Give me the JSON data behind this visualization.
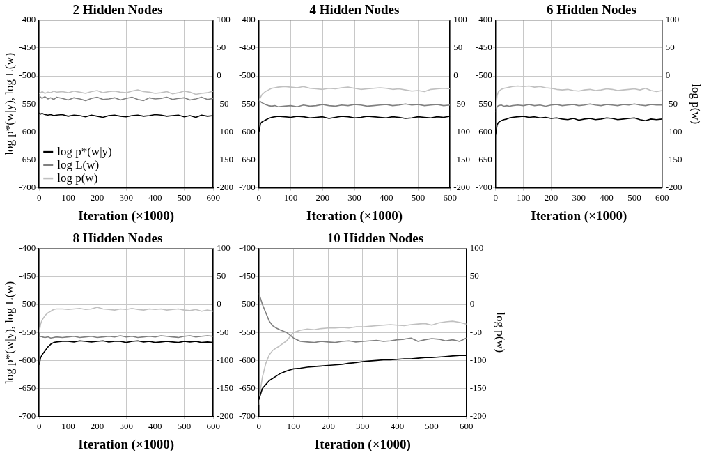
{
  "chart_data": [
    {
      "type": "line",
      "title": "2 Hidden Nodes",
      "xlabel": "Iteration (×1000)",
      "ylabel": "log p*(w|y), log L(w)",
      "xlim": [
        0,
        600
      ],
      "xticks": [
        0,
        100,
        200,
        300,
        400,
        500,
        600
      ],
      "ylim": [
        -700,
        -400
      ],
      "yticks": [
        -700,
        -650,
        -600,
        -550,
        -500,
        -450,
        -400
      ],
      "y2lim": [
        -200,
        100
      ],
      "y2ticks": [
        -200,
        -150,
        -100,
        -50,
        0,
        50,
        100
      ],
      "grid": true,
      "legend": "bottom left",
      "x": [
        0,
        5,
        10,
        20,
        30,
        40,
        50,
        60,
        80,
        100,
        120,
        140,
        160,
        180,
        200,
        220,
        240,
        260,
        280,
        300,
        320,
        340,
        360,
        380,
        400,
        420,
        440,
        460,
        480,
        500,
        520,
        540,
        560,
        580,
        600
      ],
      "series": [
        {
          "name": "log p*(w|y)",
          "color": "#000000",
          "values": [
            -566,
            -568,
            -567,
            -569,
            -570,
            -569,
            -571,
            -570,
            -569,
            -572,
            -570,
            -571,
            -573,
            -570,
            -572,
            -574,
            -571,
            -570,
            -572,
            -573,
            -571,
            -570,
            -572,
            -571,
            -569,
            -570,
            -572,
            -571,
            -570,
            -573,
            -571,
            -574,
            -570,
            -572,
            -571
          ]
        },
        {
          "name": "log L(w)",
          "color": "#808080",
          "values": [
            -535,
            -538,
            -540,
            -537,
            -541,
            -539,
            -542,
            -538,
            -540,
            -543,
            -539,
            -541,
            -544,
            -540,
            -538,
            -542,
            -541,
            -539,
            -543,
            -540,
            -538,
            -542,
            -544,
            -539,
            -541,
            -540,
            -538,
            -542,
            -540,
            -539,
            -543,
            -541,
            -538,
            -542,
            -540
          ]
        },
        {
          "name": "log p(w)",
          "color": "#c0c0c0",
          "axis": "y2",
          "values": [
            -32,
            -30,
            -28,
            -31,
            -29,
            -30,
            -27,
            -29,
            -28,
            -30,
            -27,
            -29,
            -31,
            -28,
            -26,
            -30,
            -28,
            -27,
            -29,
            -30,
            -27,
            -25,
            -28,
            -29,
            -31,
            -30,
            -28,
            -32,
            -30,
            -27,
            -29,
            -33,
            -31,
            -30,
            -27
          ]
        }
      ]
    },
    {
      "type": "line",
      "title": "4 Hidden Nodes",
      "xlabel": "Iteration (×1000)",
      "xlim": [
        0,
        600
      ],
      "xticks": [
        0,
        100,
        200,
        300,
        400,
        500,
        600
      ],
      "ylim": [
        -700,
        -400
      ],
      "yticks": [
        -700,
        -650,
        -600,
        -550,
        -500,
        -450,
        -400
      ],
      "y2lim": [
        -200,
        100
      ],
      "y2ticks": [
        -200,
        -150,
        -100,
        -50,
        0,
        50,
        100
      ],
      "grid": true,
      "x": [
        0,
        5,
        10,
        20,
        30,
        40,
        50,
        60,
        80,
        100,
        120,
        140,
        160,
        180,
        200,
        220,
        240,
        260,
        280,
        300,
        320,
        340,
        360,
        380,
        400,
        420,
        440,
        460,
        480,
        500,
        520,
        540,
        560,
        580,
        600
      ],
      "series": [
        {
          "color": "#000000",
          "values": [
            -600,
            -585,
            -582,
            -579,
            -576,
            -574,
            -573,
            -572,
            -573,
            -574,
            -572,
            -573,
            -575,
            -574,
            -573,
            -576,
            -574,
            -572,
            -573,
            -575,
            -574,
            -572,
            -573,
            -574,
            -575,
            -573,
            -574,
            -576,
            -575,
            -573,
            -574,
            -575,
            -573,
            -574,
            -572
          ]
        },
        {
          "color": "#808080",
          "values": [
            -545,
            -546,
            -548,
            -551,
            -553,
            -554,
            -553,
            -555,
            -554,
            -553,
            -555,
            -552,
            -554,
            -553,
            -551,
            -553,
            -554,
            -552,
            -553,
            -551,
            -552,
            -554,
            -553,
            -552,
            -551,
            -553,
            -552,
            -550,
            -552,
            -551,
            -553,
            -552,
            -551,
            -553,
            -552
          ]
        },
        {
          "color": "#c0c0c0",
          "axis": "y2",
          "values": [
            -45,
            -38,
            -33,
            -28,
            -25,
            -22,
            -21,
            -20,
            -19,
            -20,
            -21,
            -19,
            -22,
            -23,
            -24,
            -22,
            -23,
            -21,
            -20,
            -22,
            -24,
            -23,
            -22,
            -21,
            -22,
            -24,
            -23,
            -25,
            -27,
            -26,
            -28,
            -24,
            -23,
            -22,
            -23
          ]
        }
      ]
    },
    {
      "type": "line",
      "title": "6 Hidden Nodes",
      "xlabel": "Iteration (×1000)",
      "y2label": "log p(w)",
      "xlim": [
        0,
        600
      ],
      "xticks": [
        0,
        100,
        200,
        300,
        400,
        500,
        600
      ],
      "ylim": [
        -700,
        -400
      ],
      "yticks": [
        -700,
        -650,
        -600,
        -550,
        -500,
        -450,
        -400
      ],
      "y2lim": [
        -200,
        100
      ],
      "y2ticks": [
        -200,
        -150,
        -100,
        -50,
        0,
        50,
        100
      ],
      "grid": true,
      "x": [
        0,
        5,
        10,
        20,
        30,
        40,
        50,
        60,
        80,
        100,
        120,
        140,
        160,
        180,
        200,
        220,
        240,
        260,
        280,
        300,
        320,
        340,
        360,
        380,
        400,
        420,
        440,
        460,
        480,
        500,
        520,
        540,
        560,
        580,
        600
      ],
      "series": [
        {
          "color": "#000000",
          "values": [
            -605,
            -588,
            -583,
            -580,
            -578,
            -577,
            -575,
            -574,
            -573,
            -572,
            -574,
            -573,
            -575,
            -574,
            -576,
            -575,
            -577,
            -578,
            -576,
            -579,
            -577,
            -576,
            -578,
            -577,
            -575,
            -576,
            -578,
            -577,
            -576,
            -575,
            -578,
            -580,
            -577,
            -578,
            -577
          ]
        },
        {
          "color": "#808080",
          "values": [
            -565,
            -555,
            -553,
            -552,
            -554,
            -553,
            -554,
            -553,
            -552,
            -553,
            -551,
            -553,
            -552,
            -554,
            -552,
            -551,
            -553,
            -552,
            -551,
            -553,
            -552,
            -550,
            -552,
            -553,
            -551,
            -552,
            -553,
            -551,
            -552,
            -550,
            -552,
            -553,
            -551,
            -552,
            -552
          ]
        },
        {
          "color": "#c0c0c0",
          "axis": "y2",
          "values": [
            -60,
            -35,
            -28,
            -24,
            -22,
            -21,
            -20,
            -19,
            -18,
            -19,
            -18,
            -20,
            -19,
            -21,
            -22,
            -24,
            -25,
            -24,
            -26,
            -27,
            -25,
            -24,
            -26,
            -25,
            -23,
            -24,
            -26,
            -25,
            -24,
            -23,
            -25,
            -22,
            -26,
            -28,
            -26
          ]
        }
      ]
    },
    {
      "type": "line",
      "title": "8 Hidden Nodes",
      "xlabel": "Iteration (×1000)",
      "ylabel": "log p*(w|y), log L(w)",
      "xlim": [
        0,
        600
      ],
      "xticks": [
        0,
        100,
        200,
        300,
        400,
        500,
        600
      ],
      "ylim": [
        -700,
        -400
      ],
      "yticks": [
        -700,
        -650,
        -600,
        -550,
        -500,
        -450,
        -400
      ],
      "y2lim": [
        -200,
        100
      ],
      "y2ticks": [
        -200,
        -150,
        -100,
        -50,
        0,
        50,
        100
      ],
      "grid": true,
      "x": [
        0,
        5,
        10,
        20,
        30,
        40,
        50,
        60,
        80,
        100,
        120,
        140,
        160,
        180,
        200,
        220,
        240,
        260,
        280,
        300,
        320,
        340,
        360,
        380,
        400,
        420,
        440,
        460,
        480,
        500,
        520,
        540,
        560,
        580,
        600
      ],
      "series": [
        {
          "color": "#000000",
          "values": [
            -608,
            -595,
            -590,
            -583,
            -576,
            -571,
            -568,
            -567,
            -566,
            -566,
            -567,
            -565,
            -566,
            -567,
            -566,
            -565,
            -567,
            -566,
            -566,
            -568,
            -566,
            -565,
            -567,
            -566,
            -568,
            -567,
            -566,
            -567,
            -568,
            -566,
            -567,
            -566,
            -568,
            -567,
            -568
          ]
        },
        {
          "color": "#808080",
          "values": [
            -560,
            -557,
            -558,
            -559,
            -558,
            -560,
            -559,
            -558,
            -559,
            -558,
            -557,
            -559,
            -558,
            -557,
            -559,
            -558,
            -557,
            -558,
            -556,
            -558,
            -557,
            -559,
            -558,
            -557,
            -558,
            -556,
            -557,
            -558,
            -559,
            -557,
            -556,
            -558,
            -557,
            -556,
            -557
          ]
        },
        {
          "color": "#c0c0c0",
          "axis": "y2",
          "values": [
            -50,
            -35,
            -28,
            -20,
            -15,
            -12,
            -9,
            -8,
            -8,
            -9,
            -8,
            -7,
            -9,
            -8,
            -5,
            -8,
            -9,
            -10,
            -8,
            -9,
            -7,
            -9,
            -10,
            -8,
            -9,
            -8,
            -10,
            -9,
            -8,
            -10,
            -11,
            -9,
            -12,
            -10,
            -12
          ]
        }
      ]
    },
    {
      "type": "line",
      "title": "10 Hidden Nodes",
      "xlabel": "Iteration (×1000)",
      "y2label": "log p(w)",
      "xlim": [
        0,
        600
      ],
      "xticks": [
        0,
        100,
        200,
        300,
        400,
        500,
        600
      ],
      "ylim": [
        -700,
        -400
      ],
      "yticks": [
        -700,
        -650,
        -600,
        -550,
        -500,
        -450,
        -400
      ],
      "y2lim": [
        -200,
        100
      ],
      "y2ticks": [
        -200,
        -150,
        -100,
        -50,
        0,
        50,
        100
      ],
      "grid": true,
      "x": [
        0,
        5,
        10,
        20,
        30,
        40,
        50,
        60,
        80,
        100,
        120,
        140,
        160,
        180,
        200,
        220,
        240,
        260,
        280,
        300,
        320,
        340,
        360,
        380,
        400,
        420,
        440,
        460,
        480,
        500,
        520,
        540,
        560,
        580,
        600
      ],
      "series": [
        {
          "color": "#000000",
          "values": [
            -670,
            -660,
            -650,
            -643,
            -636,
            -632,
            -628,
            -624,
            -619,
            -615,
            -614,
            -612,
            -611,
            -610,
            -609,
            -608,
            -607,
            -605,
            -604,
            -602,
            -601,
            -600,
            -599,
            -599,
            -598,
            -597,
            -597,
            -596,
            -595,
            -595,
            -594,
            -593,
            -592,
            -591,
            -591
          ]
        },
        {
          "color": "#808080",
          "values": [
            -480,
            -490,
            -500,
            -515,
            -530,
            -538,
            -542,
            -545,
            -550,
            -560,
            -566,
            -567,
            -568,
            -566,
            -567,
            -568,
            -566,
            -565,
            -567,
            -566,
            -565,
            -564,
            -566,
            -565,
            -563,
            -562,
            -560,
            -566,
            -563,
            -561,
            -562,
            -565,
            -563,
            -566,
            -560
          ]
        },
        {
          "color": "#c0c0c0",
          "axis": "y2",
          "values": [
            -180,
            -150,
            -130,
            -105,
            -90,
            -82,
            -78,
            -74,
            -65,
            -50,
            -46,
            -44,
            -45,
            -43,
            -42,
            -42,
            -41,
            -42,
            -40,
            -40,
            -39,
            -38,
            -37,
            -36,
            -37,
            -38,
            -36,
            -35,
            -34,
            -37,
            -33,
            -31,
            -30,
            -32,
            -35
          ]
        }
      ]
    }
  ]
}
